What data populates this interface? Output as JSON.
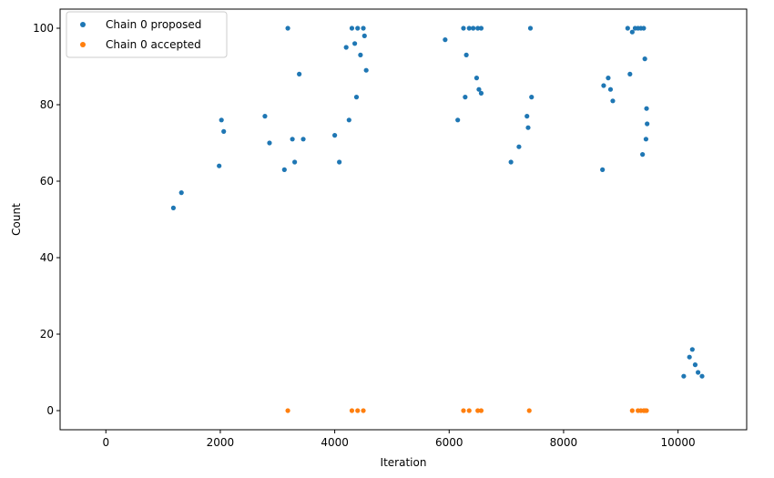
{
  "chart_data": {
    "type": "scatter",
    "title": "",
    "xlabel": "Iteration",
    "ylabel": "Count",
    "xlim": [
      -800,
      11200
    ],
    "ylim": [
      -5,
      105
    ],
    "xticks": [
      0,
      2000,
      4000,
      6000,
      8000,
      10000
    ],
    "yticks": [
      0,
      20,
      40,
      60,
      80,
      100
    ],
    "grid": false,
    "legend_position": "top-left",
    "series": [
      {
        "name": "Chain 0 proposed",
        "color": "#1f77b4",
        "points": [
          [
            1180,
            53
          ],
          [
            1320,
            57
          ],
          [
            1980,
            64
          ],
          [
            2020,
            76
          ],
          [
            2060,
            73
          ],
          [
            2780,
            77
          ],
          [
            2860,
            70
          ],
          [
            3180,
            100
          ],
          [
            3260,
            71
          ],
          [
            3380,
            88
          ],
          [
            3300,
            65
          ],
          [
            3450,
            71
          ],
          [
            3120,
            63
          ],
          [
            4000,
            72
          ],
          [
            4080,
            65
          ],
          [
            4200,
            95
          ],
          [
            4300,
            100
          ],
          [
            4350,
            96
          ],
          [
            4400,
            100
          ],
          [
            4450,
            93
          ],
          [
            4500,
            100
          ],
          [
            4520,
            98
          ],
          [
            4550,
            89
          ],
          [
            4380,
            82
          ],
          [
            4250,
            76
          ],
          [
            5930,
            97
          ],
          [
            6150,
            76
          ],
          [
            6250,
            100
          ],
          [
            6280,
            82
          ],
          [
            6300,
            93
          ],
          [
            6350,
            100
          ],
          [
            6420,
            100
          ],
          [
            6500,
            100
          ],
          [
            6560,
            100
          ],
          [
            6480,
            87
          ],
          [
            6520,
            84
          ],
          [
            6560,
            83
          ],
          [
            7080,
            65
          ],
          [
            7220,
            69
          ],
          [
            7360,
            77
          ],
          [
            7380,
            74
          ],
          [
            7420,
            100
          ],
          [
            7440,
            82
          ],
          [
            8700,
            85
          ],
          [
            8780,
            87
          ],
          [
            8820,
            84
          ],
          [
            8860,
            81
          ],
          [
            8680,
            63
          ],
          [
            9120,
            100
          ],
          [
            9160,
            88
          ],
          [
            9200,
            99
          ],
          [
            9250,
            100
          ],
          [
            9300,
            100
          ],
          [
            9350,
            100
          ],
          [
            9400,
            100
          ],
          [
            9420,
            92
          ],
          [
            9450,
            79
          ],
          [
            9460,
            75
          ],
          [
            9440,
            71
          ],
          [
            9380,
            67
          ],
          [
            10200,
            14
          ],
          [
            10250,
            16
          ],
          [
            10300,
            12
          ],
          [
            10420,
            9
          ],
          [
            10350,
            10
          ],
          [
            10100,
            9
          ]
        ]
      },
      {
        "name": "Chain 0 accepted",
        "color": "#ff7f0e",
        "points": [
          [
            3180,
            0
          ],
          [
            4300,
            0
          ],
          [
            4400,
            0
          ],
          [
            4500,
            0
          ],
          [
            6250,
            0
          ],
          [
            6350,
            0
          ],
          [
            6500,
            0
          ],
          [
            6560,
            0
          ],
          [
            7400,
            0
          ],
          [
            9200,
            0
          ],
          [
            9300,
            0
          ],
          [
            9350,
            0
          ],
          [
            9400,
            0
          ],
          [
            9420,
            0
          ],
          [
            9450,
            0
          ]
        ]
      }
    ]
  }
}
